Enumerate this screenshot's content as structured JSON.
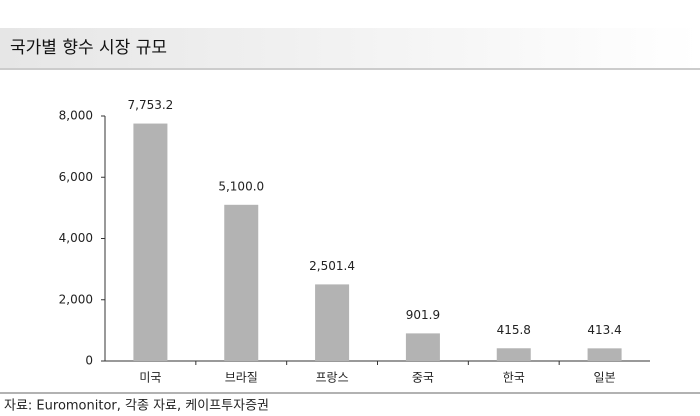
{
  "chart_data": {
    "type": "bar",
    "title": "국가별 향수 시장 규모",
    "source": "자료: Euromonitor, 각종 자료, 케이프투자증권",
    "categories": [
      "미국",
      "브라질",
      "프랑스",
      "중국",
      "한국",
      "일본"
    ],
    "values": [
      7753.2,
      5100.0,
      2501.4,
      901.9,
      415.8,
      413.4
    ],
    "value_labels": [
      "7,753.2",
      "5,100.0",
      "2,501.4",
      "901.9",
      "415.8",
      "413.4"
    ],
    "color": "#b3b3b3",
    "ylim": [
      0,
      8000
    ],
    "yticks": [
      0,
      {
        "value": 2000,
        "label": "2,000"
      },
      {
        "value": 4000,
        "label": "4,000"
      },
      {
        "value": 6000,
        "label": "6,000"
      },
      {
        "value": 8000,
        "label": "8,000"
      }
    ]
  }
}
